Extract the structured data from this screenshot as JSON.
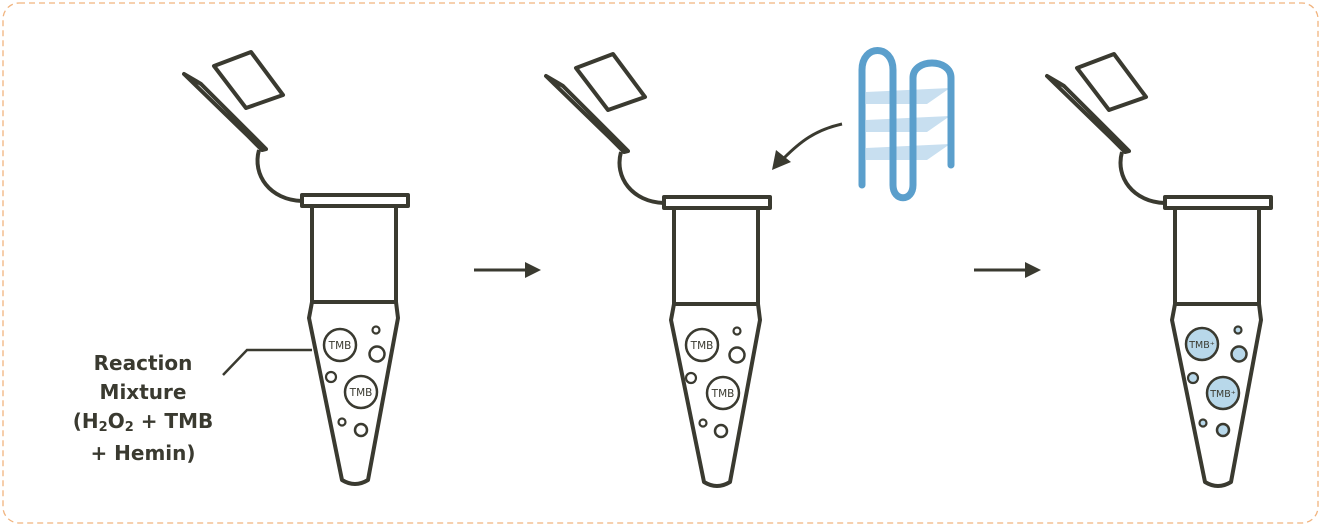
{
  "colors": {
    "ink": "#3a3a30",
    "frame_dashed": "#f0b37e",
    "dna": "#5b9fcc",
    "quadruplex_plane": "#c8dff0",
    "oxidized_fill": "#b8d8ea"
  },
  "label": {
    "line1": "Reaction",
    "line2": "Mixture",
    "line3_open": "(H",
    "line3_sub1": "2",
    "line3_mid": "O",
    "line3_sub2": "2",
    "line3_close": " + TMB",
    "line4": "+ Hemin)"
  },
  "tubes": [
    {
      "label_large": "TMB",
      "label_small": "TMB"
    },
    {
      "label_large": "TMB",
      "label_small": "TMB"
    },
    {
      "label_large": "TMB⁺",
      "label_small": "TMB⁺"
    }
  ],
  "icons": [
    "arrow-right-icon",
    "curved-arrow-icon",
    "g-quadruplex-dna-icon"
  ]
}
